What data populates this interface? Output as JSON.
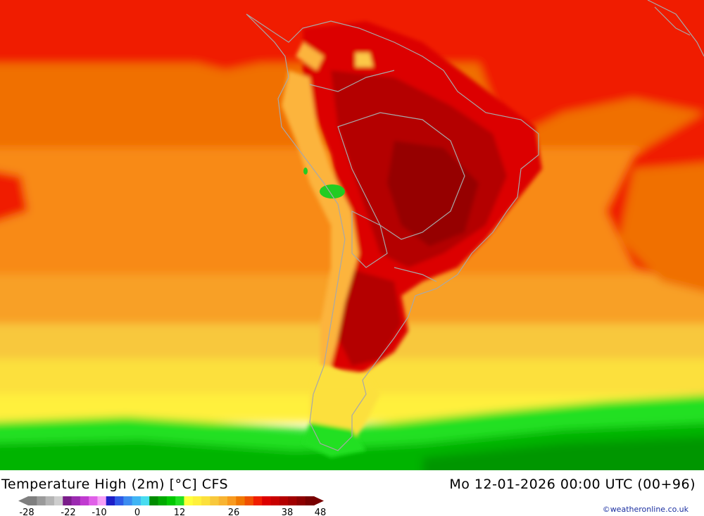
{
  "map": {
    "title": "Temperature High (2m) [°C] CFS",
    "timestamp": "Mo 12-01-2026 00:00 UTC (00+96)",
    "credit": "©weatheronline.co.uk"
  },
  "legend": {
    "tick_labels": [
      "-28",
      "-22",
      "-10",
      "0",
      "12",
      "26",
      "38",
      "48"
    ],
    "colors": [
      "#7f7f7f",
      "#9a9a9a",
      "#b4b4b4",
      "#cecece",
      "#7a1d8a",
      "#9b2ab0",
      "#c03ad0",
      "#e060e8",
      "#f6a0f6",
      "#1e1ec8",
      "#2e5ae6",
      "#3c8cf0",
      "#40b4f4",
      "#48dcf0",
      "#008c00",
      "#00aa00",
      "#00c800",
      "#22e022",
      "#ffff3c",
      "#fff03c",
      "#fce03c",
      "#f8c83c",
      "#f8b432",
      "#f89a1e",
      "#f07800",
      "#f05000",
      "#f01e00",
      "#dc0000",
      "#c80000",
      "#b40000",
      "#a00000",
      "#8c0000",
      "#780000"
    ]
  }
}
